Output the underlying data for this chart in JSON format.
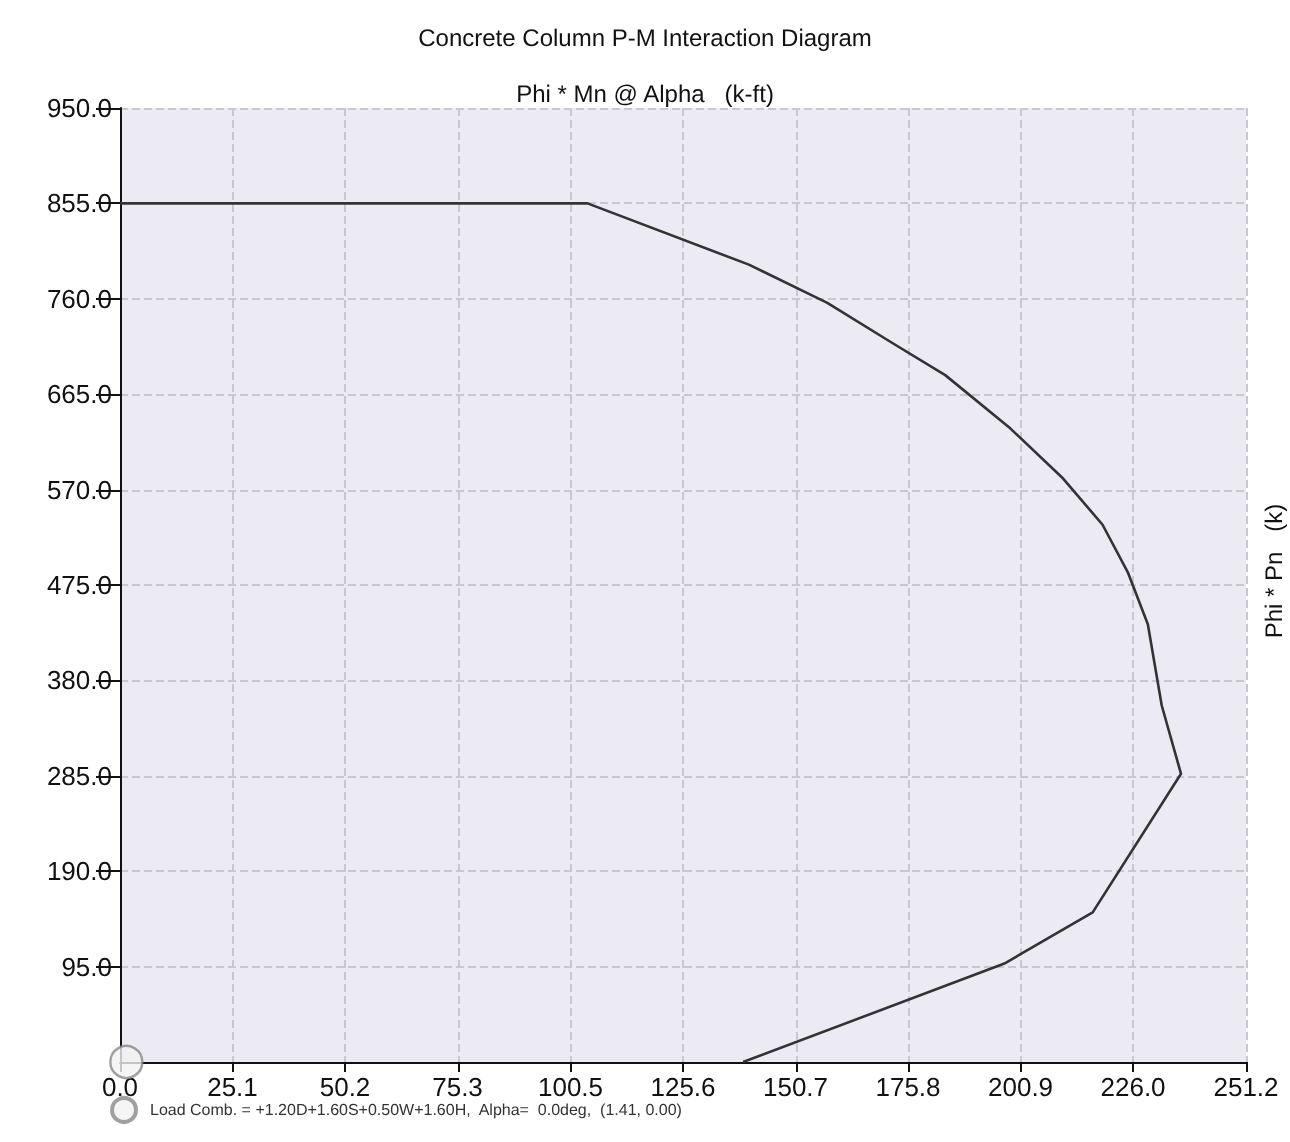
{
  "chart_data": {
    "type": "line",
    "title": "Concrete Column P-M Interaction Diagram",
    "xlabel": "Phi * Mn @ Alpha   (k-ft)",
    "ylabel": "Phi * Pn   (k)",
    "series": [
      {
        "color": "#333333",
        "x": [
          0,
          104.3,
          140.3,
          157.8,
          172.3,
          184.1,
          198.6,
          210.4,
          219.2,
          224.9,
          229.3,
          232.4,
          236.7,
          217,
          197.3,
          139
        ],
        "values": [
          855,
          855,
          794,
          756,
          716,
          684,
          631,
          581,
          535,
          487,
          436,
          355,
          287,
          149,
          98,
          0
        ]
      },
      {
        "type": "scatter",
        "name": "Load Comb. = +1.20D+1.60S+0.50W+1.60H,  Alpha=  0.0deg,  (1.41, 0.00)",
        "color": "#888888",
        "marker": "circle",
        "x": [
          1.41
        ],
        "values": [
          0
        ]
      }
    ],
    "xlim": [
      0,
      251.2
    ],
    "xticks": [
      {
        "value": 0,
        "label": "0.0"
      },
      25.1,
      50.2,
      75.3,
      100.5,
      125.6,
      150.7,
      175.8,
      200.9,
      {
        "value": 226,
        "label": "226.0"
      },
      251.2
    ],
    "ylim": [
      0,
      950
    ],
    "yticks": [
      {
        "value": 95,
        "label": "95.0"
      },
      {
        "value": 190,
        "label": "190.0"
      },
      {
        "value": 285,
        "label": "285.0"
      },
      {
        "value": 380,
        "label": "380.0"
      },
      {
        "value": 475,
        "label": "475.0"
      },
      {
        "value": 570,
        "label": "570.0"
      },
      {
        "value": 665,
        "label": "665.0"
      },
      {
        "value": 760,
        "label": "760.0"
      },
      {
        "value": 855,
        "label": "855.0"
      },
      {
        "value": 950,
        "label": "950.0"
      }
    ],
    "grid": true,
    "legend": "bottom left",
    "marker": "none",
    "line_style": "solid"
  }
}
